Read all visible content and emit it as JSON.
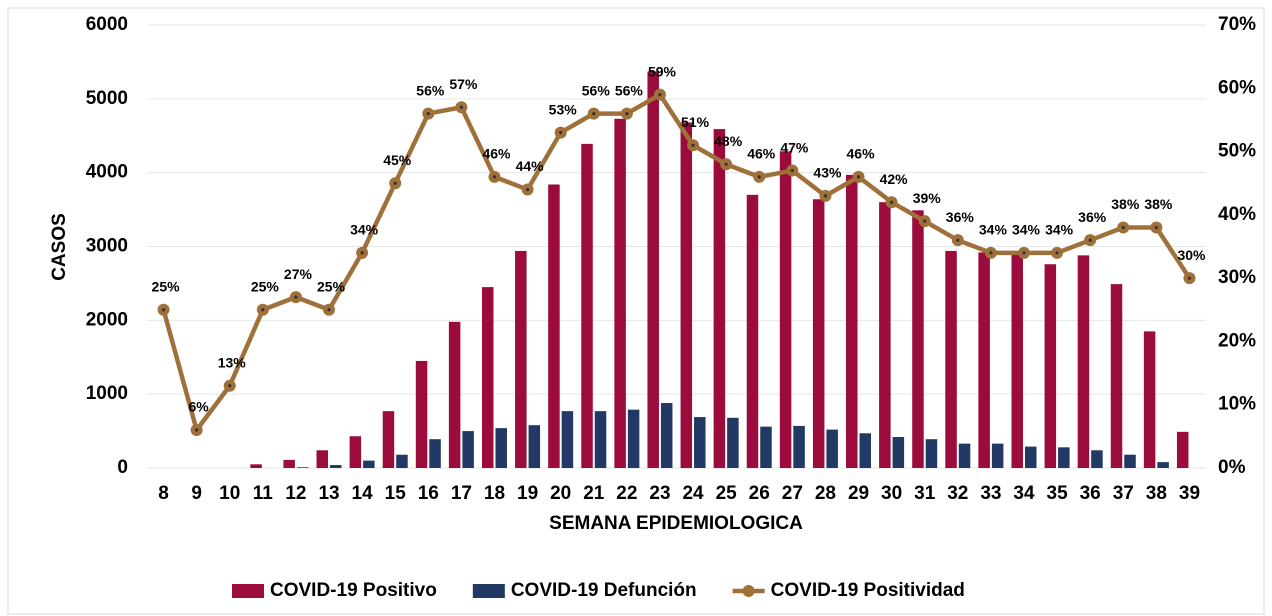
{
  "chart_data": {
    "type": "bar",
    "categories": [
      "8",
      "9",
      "10",
      "11",
      "12",
      "13",
      "14",
      "15",
      "16",
      "17",
      "18",
      "19",
      "20",
      "21",
      "22",
      "23",
      "24",
      "25",
      "26",
      "27",
      "28",
      "29",
      "30",
      "31",
      "32",
      "33",
      "34",
      "35",
      "36",
      "37",
      "38",
      "39"
    ],
    "x_label": "SEMANA EPIDEMIOLOGICA",
    "y_label": "CASOS",
    "ylim": [
      0,
      6000
    ],
    "yticks": [
      0,
      1000,
      2000,
      3000,
      4000,
      5000,
      6000
    ],
    "y2lim": [
      0,
      70
    ],
    "y2ticks": [
      {
        "value": 0,
        "label": "0%"
      },
      {
        "value": 10,
        "label": "10%"
      },
      {
        "value": 20,
        "label": "20%"
      },
      {
        "value": 30,
        "label": "30%"
      },
      {
        "value": 40,
        "label": "40%"
      },
      {
        "value": 50,
        "label": "50%"
      },
      {
        "value": 60,
        "label": "60%"
      },
      {
        "value": 70,
        "label": "70%"
      }
    ],
    "grid": true,
    "series": [
      {
        "name": "COVID-19 Positivo",
        "color": "#9b0b3b",
        "type": "bar",
        "values": [
          0,
          0,
          0,
          50,
          110,
          240,
          430,
          770,
          1450,
          1980,
          2450,
          2940,
          3840,
          4390,
          4730,
          5370,
          4680,
          4590,
          3700,
          4290,
          3640,
          3970,
          3600,
          3490,
          2940,
          2920,
          2930,
          2760,
          2880,
          2490,
          1850,
          490
        ]
      },
      {
        "name": "COVID-19 Defunción",
        "color": "#213964",
        "type": "bar",
        "values": [
          0,
          0,
          0,
          0,
          10,
          40,
          100,
          180,
          390,
          500,
          540,
          580,
          770,
          770,
          790,
          880,
          690,
          680,
          560,
          570,
          520,
          470,
          420,
          390,
          330,
          330,
          290,
          280,
          240,
          180,
          80,
          0
        ]
      },
      {
        "name": "COVID-19 Positividad",
        "color": "#a0703a",
        "type": "line",
        "axis": "y2",
        "values": [
          25,
          6,
          13,
          25,
          27,
          25,
          34,
          45,
          56,
          57,
          46,
          44,
          53,
          56,
          56,
          59,
          51,
          48,
          46,
          47,
          43,
          46,
          42,
          39,
          36,
          34,
          34,
          34,
          36,
          38,
          38,
          30
        ],
        "value_labels": [
          "25%",
          "6%",
          "13%",
          "25%",
          "27%",
          "25%",
          "34%",
          "45%",
          "56%",
          "57%",
          "46%",
          "44%",
          "53%",
          "56%",
          "56%",
          "59%",
          "51%",
          "48%",
          "46%",
          "47%",
          "43%",
          "46%",
          "42%",
          "39%",
          "36%",
          "34%",
          "34%",
          "34%",
          "36%",
          "38%",
          "38%",
          "30%"
        ]
      }
    ]
  }
}
